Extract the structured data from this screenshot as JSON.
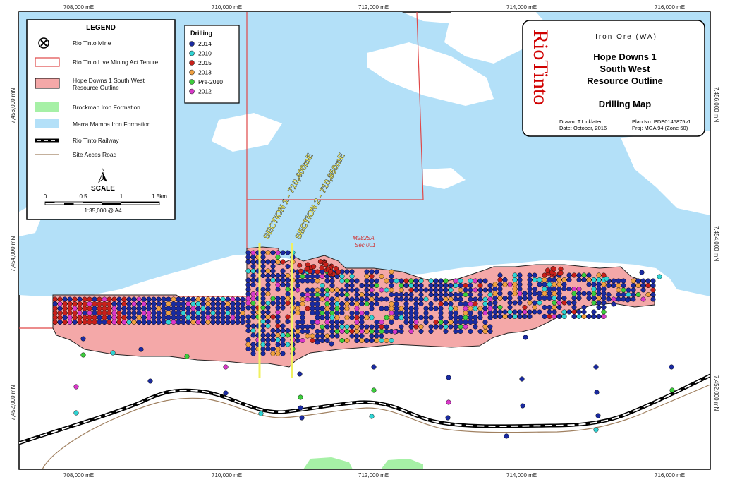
{
  "map": {
    "top_x_labels": [
      "708,000 mE",
      "710,000 mE",
      "712,000 mE",
      "714,000 mE",
      "716,000 mE"
    ],
    "bottom_x_labels": [
      "708,000 mE",
      "710,000 mE",
      "712,000 mE",
      "714,000 mE",
      "716,000 mE"
    ],
    "left_y_labels": [
      "7,456,000 mN",
      "7,454,000 mN",
      "7,452,000 mN"
    ],
    "right_y_labels": [
      "7,456,000 mN",
      "7,454,000 mN",
      "7,452,000 mN"
    ],
    "section1_label": "SECTION 1 - 710,400mE",
    "section2_label": "SECTION 2 - 710,850mE",
    "tenure_label_1": "M282SA",
    "tenure_label_2": "Sec 001"
  },
  "legend": {
    "title": "LEGEND",
    "items": [
      "Rio Tinto Mine",
      "Rio Tinto Live Mining Act Tenure",
      "Hope Downs 1 South West",
      "Resource Outline",
      "Brockman Iron Formation",
      "Marra Mamba Iron Formation",
      "Rio Tinto Railway",
      "Site Acces Road"
    ],
    "north": "N",
    "scale_title": "SCALE",
    "scale_ticks": [
      "0",
      "0.5",
      "1",
      "1.5km"
    ],
    "scale_ratio": "1:35,000 @ A4"
  },
  "drilling_legend": {
    "title": "Drilling",
    "items": [
      {
        "label": "2014",
        "color": "#1a2aa0"
      },
      {
        "label": "2010",
        "color": "#2fd3d3"
      },
      {
        "label": "2015",
        "color": "#c8201a"
      },
      {
        "label": "2013",
        "color": "#f0a040"
      },
      {
        "label": "Pre-2010",
        "color": "#3ccc3c"
      },
      {
        "label": "2012",
        "color": "#d838c8"
      }
    ]
  },
  "title_block": {
    "logo_text": "RioTinto",
    "subtitle": "Iron Ore (WA)",
    "title_line1": "Hope Downs 1",
    "title_line2": "South West",
    "title_line3": "Resource Outline",
    "map_title": "Drilling Map",
    "drawn": "Drawn: T.Linklater",
    "date": "Date: October, 2016",
    "plan_no": "Plan No: PDE0145875v1",
    "proj": "Proj: MGA 94 (Zone 50)"
  },
  "colors": {
    "marra_mamba": "#b3e0f8",
    "brockman": "#a6f0a6",
    "resource_outline": "#f4a8a8",
    "tenure": "#e04848",
    "section_line": "#f0f060",
    "road": "#a08060"
  }
}
